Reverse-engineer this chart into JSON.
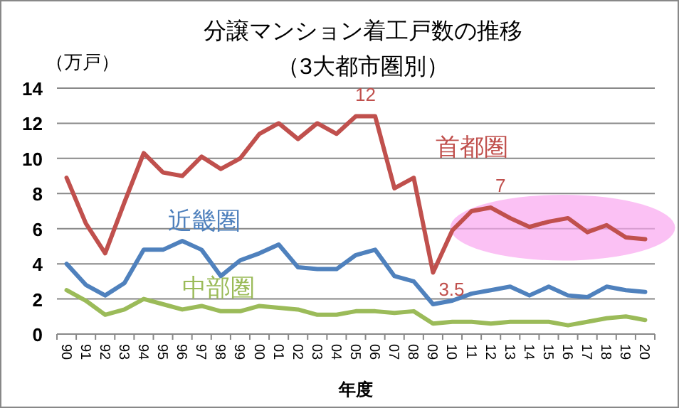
{
  "chart_data": {
    "type": "line",
    "title": "分譲マンション着工戸数の推移",
    "subtitle": "（3大都市圏別）",
    "ylabel": "（万戸）",
    "xlabel": "年度",
    "categories": [
      "90",
      "91",
      "92",
      "93",
      "94",
      "95",
      "96",
      "97",
      "98",
      "99",
      "00",
      "01",
      "02",
      "03",
      "04",
      "05",
      "06",
      "07",
      "08",
      "09",
      "10",
      "11",
      "12",
      "13",
      "14",
      "15",
      "16",
      "17",
      "18",
      "19",
      "20"
    ],
    "series": [
      {
        "name": "首都圏",
        "color": "#c0504d",
        "values": [
          8.9,
          6.3,
          4.6,
          7.5,
          10.3,
          9.2,
          9.0,
          10.1,
          9.4,
          10.0,
          11.4,
          12.0,
          11.1,
          12.0,
          11.4,
          12.4,
          12.4,
          8.3,
          8.9,
          3.5,
          5.9,
          7.0,
          7.2,
          6.6,
          6.1,
          6.4,
          6.6,
          5.8,
          6.2,
          5.5,
          5.4
        ]
      },
      {
        "name": "近畿圏",
        "color": "#4f81bd",
        "values": [
          4.0,
          2.8,
          2.2,
          2.9,
          4.8,
          4.8,
          5.3,
          4.8,
          3.3,
          4.2,
          4.6,
          5.1,
          3.8,
          3.7,
          3.7,
          4.5,
          4.8,
          3.3,
          3.0,
          1.7,
          1.9,
          2.3,
          2.5,
          2.7,
          2.2,
          2.7,
          2.2,
          2.1,
          2.7,
          2.5,
          2.4
        ]
      },
      {
        "name": "中部圏",
        "color": "#9bbb59",
        "values": [
          2.5,
          1.9,
          1.1,
          1.4,
          2.0,
          1.7,
          1.4,
          1.6,
          1.3,
          1.3,
          1.6,
          1.5,
          1.4,
          1.1,
          1.1,
          1.3,
          1.3,
          1.2,
          1.3,
          0.6,
          0.7,
          0.7,
          0.6,
          0.7,
          0.7,
          0.7,
          0.5,
          0.7,
          0.9,
          1.0,
          0.8
        ]
      }
    ],
    "ylim": [
      0,
      14
    ],
    "yticks": [
      0,
      2,
      4,
      6,
      8,
      10,
      12,
      14
    ],
    "grid": "y",
    "legend": false,
    "marker": "none",
    "line_style": "solid",
    "annotations": [
      {
        "text": "12",
        "x": "05",
        "y": 12.4
      },
      {
        "text": "7",
        "x": "12",
        "y": 7.2
      },
      {
        "text": "3.5",
        "x": "09",
        "y": 3.5
      }
    ]
  }
}
